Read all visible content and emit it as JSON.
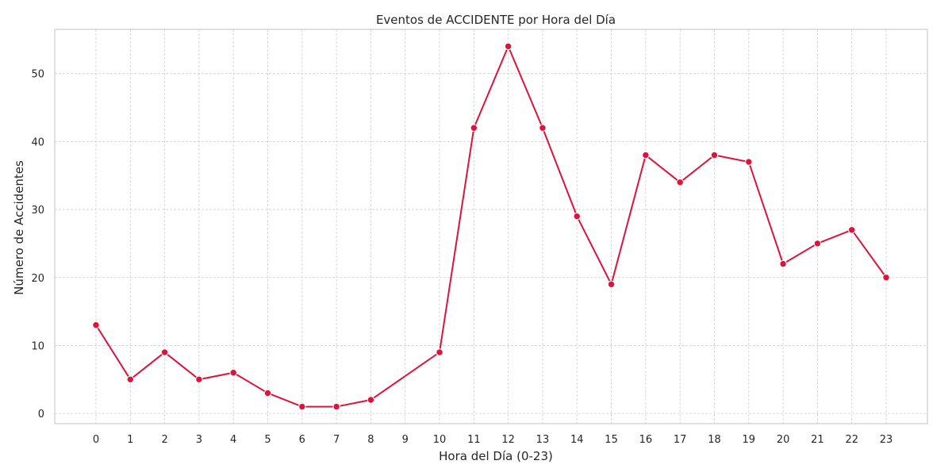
{
  "chart_data": {
    "type": "line",
    "title": "Eventos de ACCIDENTE por Hora del Día",
    "xlabel": "Hora del Día (0-23)",
    "ylabel": "Número de Accidentes",
    "x": [
      0,
      1,
      2,
      3,
      4,
      5,
      6,
      7,
      8,
      10,
      11,
      12,
      13,
      14,
      15,
      16,
      17,
      18,
      19,
      20,
      21,
      22,
      23
    ],
    "x_ticks": [
      "0",
      "1",
      "2",
      "3",
      "4",
      "5",
      "6",
      "7",
      "8",
      "9",
      "10",
      "11",
      "12",
      "13",
      "14",
      "15",
      "16",
      "17",
      "18",
      "19",
      "20",
      "21",
      "22",
      "23"
    ],
    "series": [
      {
        "values": [
          13,
          5,
          9,
          5,
          6,
          3,
          1,
          1,
          2,
          9,
          42,
          54,
          42,
          29,
          19,
          38,
          34,
          38,
          37,
          22,
          25,
          27,
          20
        ],
        "color": "#dc143c"
      }
    ],
    "xlim": [
      -1.2,
      24.2
    ],
    "ylim": [
      -1.5,
      56.5
    ],
    "y_ticks": [
      0,
      10,
      20,
      30,
      40,
      50
    ],
    "grid": true,
    "marker": "circle"
  }
}
